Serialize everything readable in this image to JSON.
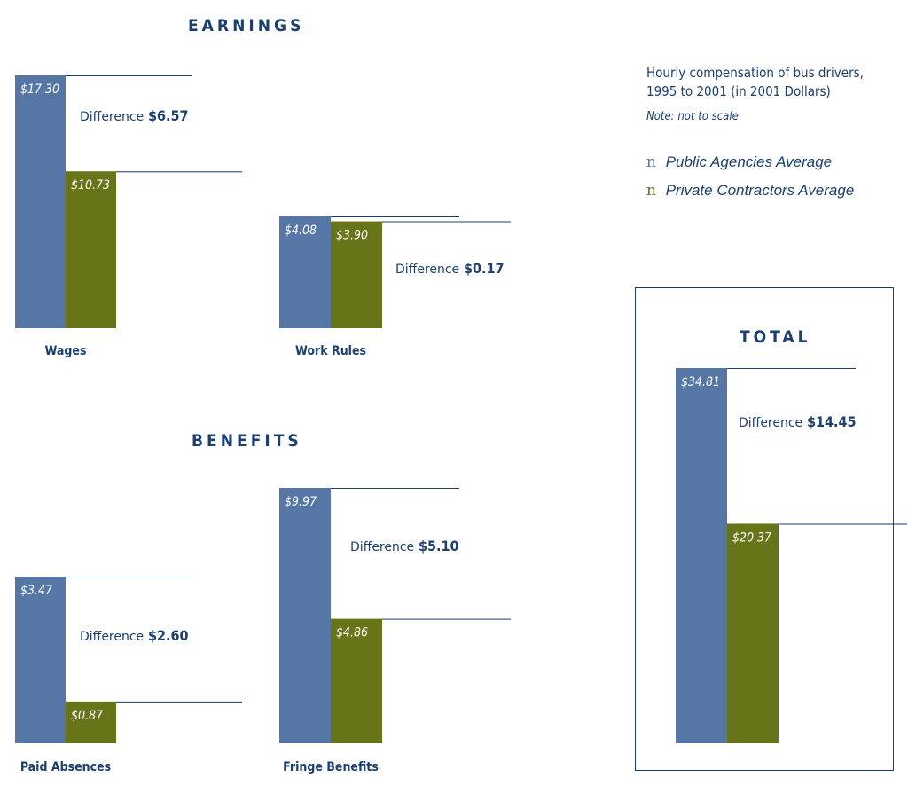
{
  "sections": {
    "earnings_title": "EARNINGS",
    "benefits_title": "BENEFITS",
    "total_title": "TOTAL"
  },
  "legend": {
    "title_line1": "Hourly compensation of bus drivers,",
    "title_line2": "1995 to 2001 (in 2001 Dollars)",
    "note": "Note: not to scale",
    "marker": "n",
    "items": [
      {
        "label": "Public Agencies Average",
        "color": "#5677a6"
      },
      {
        "label": "Private Contractors Average",
        "color": "#677518"
      }
    ]
  },
  "difference_word": "Difference",
  "chart_data": [
    {
      "type": "bar",
      "category": "Wages",
      "series": [
        {
          "name": "Public Agencies Average",
          "value": 17.3,
          "label": "$17.30"
        },
        {
          "name": "Private Contractors Average",
          "value": 10.73,
          "label": "$10.73"
        }
      ],
      "difference": 6.57,
      "difference_label": "$6.57"
    },
    {
      "type": "bar",
      "category": "Work Rules",
      "series": [
        {
          "name": "Public Agencies Average",
          "value": 4.08,
          "label": "$4.08"
        },
        {
          "name": "Private Contractors Average",
          "value": 3.9,
          "label": "$3.90"
        }
      ],
      "difference": 0.17,
      "difference_label": "$0.17"
    },
    {
      "type": "bar",
      "category": "Paid Absences",
      "series": [
        {
          "name": "Public Agencies Average",
          "value": 3.47,
          "label": "$3.47"
        },
        {
          "name": "Private Contractors Average",
          "value": 0.87,
          "label": "$0.87"
        }
      ],
      "difference": 2.6,
      "difference_label": "$2.60"
    },
    {
      "type": "bar",
      "category": "Fringe Benefits",
      "series": [
        {
          "name": "Public Agencies Average",
          "value": 9.97,
          "label": "$9.97"
        },
        {
          "name": "Private Contractors Average",
          "value": 4.86,
          "label": "$4.86"
        }
      ],
      "difference": 5.1,
      "difference_label": "$5.10"
    },
    {
      "type": "bar",
      "category": "Total",
      "series": [
        {
          "name": "Public Agencies Average",
          "value": 34.81,
          "label": "$34.81"
        },
        {
          "name": "Private Contractors Average",
          "value": 20.37,
          "label": "$20.37"
        }
      ],
      "difference": 14.45,
      "difference_label": "$14.45"
    }
  ]
}
